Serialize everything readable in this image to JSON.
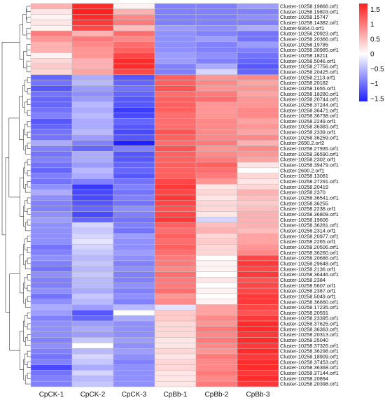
{
  "chart_data": {
    "type": "heatmap",
    "columns": [
      "CpCK-1",
      "CpCK-2",
      "CpCK-3",
      "CpBb-1",
      "CpBb-2",
      "CpBb-3"
    ],
    "rows": [
      "Cluster-10258.19866.orf1",
      "Cluster-10258.19803.orf1",
      "Cluster-10258.15747",
      "Cluster-10258.14382.orf1",
      "Cluster-9364.0.orf1",
      "Cluster-10258.20923.orf1",
      "Cluster-10258.20366.orf1",
      "Cluster-10258.19785",
      "Cluster-10258.30985.orf1",
      "Cluster-10258.18211",
      "Cluster-10258.5046.orf1",
      "Cluster-10258.27756.orf1",
      "Cluster-10258.20425.orf1",
      "Cluster-10258.2113.orf1",
      "Cluster-10258.20182",
      "Cluster-10258.1655.orf1",
      "Cluster-10258.18280.orf1",
      "Cluster-10258.20744.orf1",
      "Cluster-10258.37244.orf1",
      "Cluster-10258.36471.orf1",
      "Cluster-10258.36738.orf1",
      "Cluster-10258.2249.orf1",
      "Cluster-10258.36383.orf1",
      "Cluster-10258.2339.orf1",
      "Cluster-10258.36259.orf1",
      "Cluster-2690.2.orf2",
      "Cluster-10258.27935.orf1",
      "Cluster-10258.36590.orf1",
      "Cluster-10258.2302.orf1",
      "Cluster-10258.39479.orf1",
      "Cluster-2690.2.orf1",
      "Cluster-10258.13081",
      "Cluster-10258.27291.orf1",
      "Cluster-10258.20419",
      "Cluster-10258.2370",
      "Cluster-10258.36541.orf1",
      "Cluster-10258.36255",
      "Cluster-10258.2238.orf1",
      "Cluster-10258.36809.orf1",
      "Cluster-10258.19606",
      "Cluster-10258.36281.orf1",
      "Cluster-10258.2314.orf1",
      "Cluster-10258.20977.orf1",
      "Cluster-10258.2265.orf1",
      "Cluster-10258.20506.orf1",
      "Cluster-10258.36260.orf1",
      "Cluster-10258.20686.orf1",
      "Cluster-10258.29648.orf1",
      "Cluster-10258.2136.orf1",
      "Cluster-10258.36446.orf1",
      "Cluster-10258.2384",
      "Cluster-10258.5607.orf1",
      "Cluster-10258.2387.orf1",
      "Cluster-10258.5049.orf1",
      "Cluster-10258.36660.orf1",
      "Cluster-10258.17235.orf1",
      "Cluster-10258.20591",
      "Cluster-10258.23395.orf1",
      "Cluster-10258.37625.orf1",
      "Cluster-10258.36363.orf1",
      "Cluster-10258.20313.orf1",
      "Cluster-10258.25040",
      "Cluster-10258.37326.orf1",
      "Cluster-10258.36298.orf1",
      "Cluster-10258.18909.orf1",
      "Cluster-10258.37453.orf1",
      "Cluster-10258.36368.orf1",
      "Cluster-10258.37144.orf1",
      "Cluster-10258.20894",
      "Cluster-10258.20398.orf1"
    ],
    "values": [
      [
        0.6,
        1.6,
        0.1,
        -0.9,
        -0.9,
        -0.7
      ],
      [
        0.2,
        1.7,
        0.6,
        -0.9,
        -0.9,
        -0.9
      ],
      [
        0.1,
        1.6,
        0.9,
        -0.9,
        -0.9,
        -0.8
      ],
      [
        0.2,
        1.5,
        1.0,
        -0.9,
        -0.9,
        -0.9
      ],
      [
        0.1,
        1.4,
        0.5,
        -0.7,
        -0.8,
        -0.6
      ],
      [
        1.0,
        0.6,
        1.1,
        -0.8,
        -0.9,
        -1.0
      ],
      [
        0.8,
        1.0,
        0.9,
        -0.8,
        -0.7,
        -1.0
      ],
      [
        0.6,
        0.9,
        1.1,
        -0.8,
        -0.9,
        -0.7
      ],
      [
        0.6,
        0.8,
        1.2,
        -0.8,
        -0.9,
        -0.9
      ],
      [
        0.1,
        0.8,
        1.4,
        -0.7,
        -0.8,
        -1.0
      ],
      [
        0.3,
        0.6,
        1.6,
        -0.7,
        -0.9,
        -1.1
      ],
      [
        0.4,
        0.6,
        1.6,
        -0.9,
        -0.6,
        -1.2
      ],
      [
        0.3,
        0.7,
        1.4,
        -0.9,
        -0.3,
        -1.1
      ],
      [
        -1.1,
        -0.6,
        -1.2,
        1.2,
        0.8,
        0.9
      ],
      [
        -1.0,
        -0.5,
        -1.1,
        1.2,
        0.9,
        0.7
      ],
      [
        -1.2,
        -0.7,
        -1.0,
        1.3,
        0.8,
        0.8
      ],
      [
        -1.0,
        -0.8,
        -1.1,
        1.1,
        1.0,
        0.7
      ],
      [
        -1.1,
        -0.7,
        -1.2,
        1.2,
        1.1,
        0.8
      ],
      [
        -1.1,
        -0.5,
        -1.2,
        1.2,
        0.8,
        0.8
      ],
      [
        -1.0,
        -0.6,
        -1.4,
        1.2,
        0.8,
        0.9
      ],
      [
        -0.9,
        -0.5,
        -1.3,
        1.1,
        0.8,
        0.9
      ],
      [
        -1.2,
        -0.6,
        -1.1,
        1.1,
        0.9,
        0.7
      ],
      [
        -1.1,
        -0.6,
        -1.2,
        1.1,
        0.9,
        0.8
      ],
      [
        -1.0,
        -0.5,
        -1.3,
        1.3,
        0.9,
        0.7
      ],
      [
        -1.0,
        -0.7,
        -1.2,
        1.2,
        0.9,
        0.9
      ],
      [
        -0.6,
        -0.9,
        -1.6,
        1.1,
        1.0,
        0.6
      ],
      [
        -0.9,
        -1.1,
        -0.9,
        1.3,
        0.8,
        0.9
      ],
      [
        -1.0,
        -0.6,
        -1.2,
        1.2,
        0.9,
        0.8
      ],
      [
        -0.9,
        -0.6,
        -1.2,
        1.2,
        1.0,
        0.7
      ],
      [
        -1.0,
        -0.7,
        -1.1,
        1.2,
        1.2,
        0.2
      ],
      [
        -1.1,
        -0.5,
        -1.1,
        1.2,
        1.1,
        0.0
      ],
      [
        -0.9,
        -0.6,
        -1.2,
        1.2,
        1.0,
        0.3
      ],
      [
        -1.0,
        -0.9,
        -1.0,
        1.4,
        0.8,
        0.2
      ],
      [
        -0.8,
        -1.4,
        -0.9,
        1.5,
        0.2,
        0.3
      ],
      [
        -0.6,
        -1.3,
        -1.0,
        1.4,
        0.3,
        0.6
      ],
      [
        -0.8,
        -1.3,
        -0.9,
        1.5,
        0.2,
        0.5
      ],
      [
        -0.9,
        -1.2,
        -1.0,
        1.4,
        0.3,
        0.4
      ],
      [
        -0.9,
        -1.1,
        -0.8,
        1.3,
        0.3,
        0.5
      ],
      [
        -0.8,
        -1.3,
        -0.9,
        1.4,
        0.2,
        0.6
      ],
      [
        -0.7,
        -1.1,
        -1.0,
        1.5,
        -0.3,
        0.6
      ],
      [
        -0.8,
        -0.3,
        -0.9,
        1.2,
        0.5,
        0.6
      ],
      [
        -0.8,
        -0.4,
        -1.0,
        1.1,
        0.6,
        0.5
      ],
      [
        -0.8,
        -0.3,
        -0.7,
        1.2,
        0.3,
        0.7
      ],
      [
        -0.8,
        -0.2,
        -0.8,
        1.1,
        0.4,
        0.7
      ],
      [
        -1.0,
        -0.3,
        -0.8,
        1.2,
        0.3,
        0.8
      ],
      [
        -0.9,
        -0.4,
        -0.7,
        1.1,
        0.3,
        0.9
      ],
      [
        -0.8,
        -0.5,
        -0.8,
        1.0,
        0.0,
        1.4
      ],
      [
        -0.9,
        -0.4,
        -0.9,
        1.0,
        0.1,
        1.5
      ],
      [
        -1.0,
        -0.5,
        -0.8,
        0.9,
        0.1,
        1.4
      ],
      [
        -0.8,
        -0.4,
        -0.9,
        1.1,
        0.0,
        1.5
      ],
      [
        -0.9,
        -0.5,
        -0.9,
        1.0,
        0.2,
        1.3
      ],
      [
        -0.9,
        -0.5,
        -0.8,
        1.0,
        0.0,
        1.4
      ],
      [
        -0.8,
        -0.6,
        -0.9,
        1.1,
        0.1,
        1.4
      ],
      [
        -1.0,
        -0.4,
        -0.8,
        0.8,
        0.0,
        1.5
      ],
      [
        -0.8,
        -0.5,
        -0.9,
        0.9,
        0.1,
        1.5
      ],
      [
        -0.6,
        -0.7,
        -0.5,
        -0.2,
        0.7,
        1.4
      ],
      [
        -0.7,
        -1.2,
        0.0,
        0.4,
        0.7,
        1.3
      ],
      [
        -0.9,
        -1.1,
        -0.6,
        0.4,
        0.9,
        1.5
      ],
      [
        -0.8,
        -0.7,
        -0.8,
        0.3,
        0.8,
        1.6
      ],
      [
        -0.8,
        -0.6,
        -0.8,
        0.3,
        1.0,
        1.6
      ],
      [
        -0.8,
        -0.7,
        -0.8,
        0.3,
        0.9,
        1.5
      ],
      [
        -0.9,
        -0.4,
        -0.7,
        0.2,
        1.0,
        1.6
      ],
      [
        -0.8,
        0.0,
        -0.8,
        0.2,
        0.9,
        1.5
      ],
      [
        -0.9,
        -0.5,
        -0.7,
        0.3,
        0.8,
        1.6
      ],
      [
        -1.0,
        -0.3,
        -0.8,
        0.2,
        1.0,
        1.5
      ],
      [
        -0.9,
        -0.4,
        -0.9,
        0.3,
        0.9,
        1.6
      ],
      [
        -1.3,
        -0.6,
        -0.8,
        0.3,
        0.9,
        1.6
      ],
      [
        -1.0,
        -0.3,
        -0.8,
        0.2,
        1.0,
        1.5
      ],
      [
        -0.9,
        -0.5,
        -0.8,
        0.2,
        0.9,
        1.6
      ],
      [
        -0.9,
        -0.4,
        -0.8,
        0.2,
        1.0,
        1.5
      ]
    ],
    "color_scale": {
      "min": -1.6,
      "max": 1.7,
      "low_color": "#1f1fff",
      "mid_color": "#ffffff",
      "high_color": "#ff1f1f",
      "ticks": [
        1.5,
        1,
        0.5,
        0,
        -0.5,
        -1,
        -1.5
      ],
      "tick_labels": [
        "1.5",
        "1",
        "0.5",
        "0",
        "−0.5",
        "−1",
        "−1.5"
      ]
    },
    "row_dendrogram": true,
    "legend_placement": "top-right"
  }
}
